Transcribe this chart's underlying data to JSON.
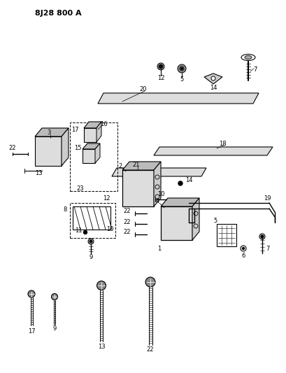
{
  "title": "8J28 800 A",
  "bg_color": "#ffffff",
  "fig_width": 4.09,
  "fig_height": 5.33,
  "dpi": 100
}
